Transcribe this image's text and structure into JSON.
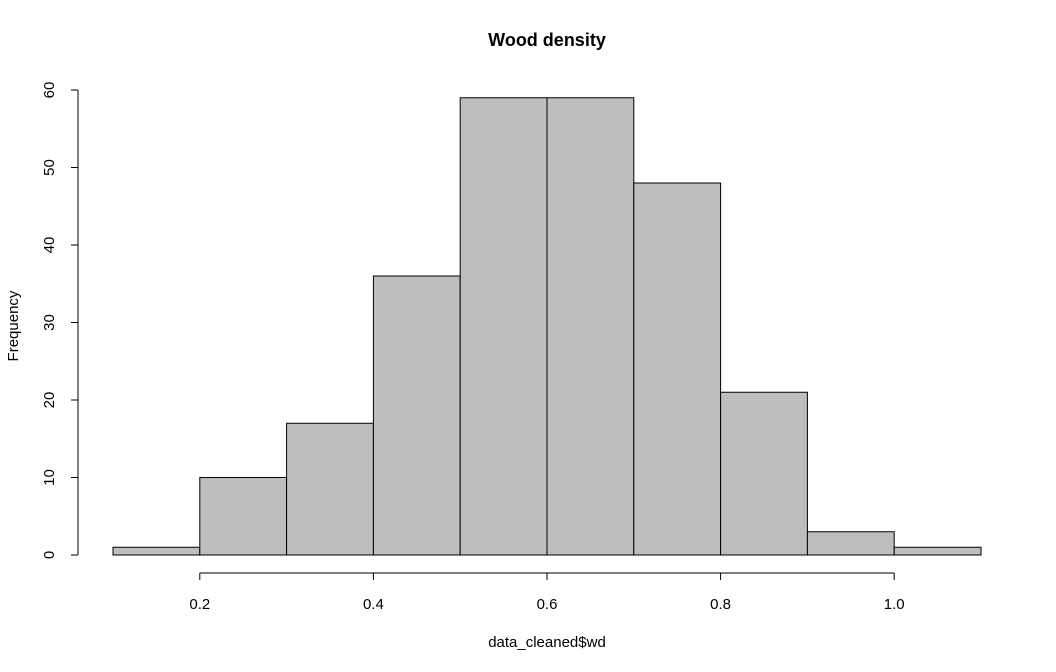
{
  "chart_data": {
    "type": "bar",
    "title": "Wood density",
    "xlabel": "data_cleaned$wd",
    "ylabel": "Frequency",
    "bins": [
      {
        "from": 0.1,
        "to": 0.2,
        "count": 1
      },
      {
        "from": 0.2,
        "to": 0.3,
        "count": 10
      },
      {
        "from": 0.3,
        "to": 0.4,
        "count": 17
      },
      {
        "from": 0.4,
        "to": 0.5,
        "count": 36
      },
      {
        "from": 0.5,
        "to": 0.6,
        "count": 59
      },
      {
        "from": 0.6,
        "to": 0.7,
        "count": 59
      },
      {
        "from": 0.7,
        "to": 0.8,
        "count": 48
      },
      {
        "from": 0.8,
        "to": 0.9,
        "count": 21
      },
      {
        "from": 0.9,
        "to": 1.0,
        "count": 3
      },
      {
        "from": 1.0,
        "to": 1.1,
        "count": 1
      }
    ],
    "x_ticks": [
      0.2,
      0.4,
      0.6,
      0.8,
      1.0
    ],
    "x_tick_labels": [
      "0.2",
      "0.4",
      "0.6",
      "0.8",
      "1.0"
    ],
    "y_ticks": [
      0,
      10,
      20,
      30,
      40,
      50,
      60
    ],
    "y_tick_labels": [
      "0",
      "10",
      "20",
      "30",
      "40",
      "50",
      "60"
    ],
    "xlim": [
      0.1,
      1.1
    ],
    "ylim": [
      0,
      60
    ],
    "grid": false,
    "bar_color": "#bebebe",
    "edge_color": "#000000"
  }
}
